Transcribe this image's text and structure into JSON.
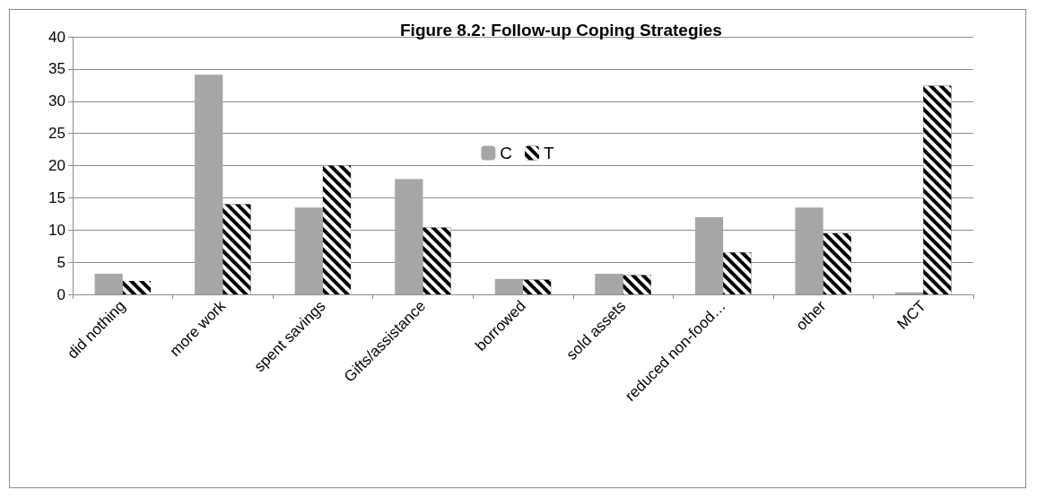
{
  "chart_data": {
    "type": "bar",
    "title": "Figure 8.2: Follow-up Coping Strategies",
    "categories": [
      "did nothing",
      "more work",
      "spent savings",
      "Gifts/assistance",
      "borrowed",
      "sold assets",
      "reduced non-food…",
      "other",
      "MCT"
    ],
    "series": [
      {
        "name": "C",
        "color": "#a6a6a6",
        "values": [
          3.2,
          34.1,
          13.5,
          17.9,
          2.4,
          3.2,
          12,
          13.5,
          0.3
        ]
      },
      {
        "name": "T",
        "color": "#000000",
        "values": [
          2.1,
          14,
          20,
          10.4,
          2.3,
          3,
          6.5,
          9.5,
          32.4
        ]
      }
    ],
    "ylim": [
      0,
      40
    ],
    "yticks": [
      0,
      5,
      10,
      15,
      20,
      25,
      30,
      35,
      40
    ],
    "grid": "y",
    "legend": "center"
  }
}
